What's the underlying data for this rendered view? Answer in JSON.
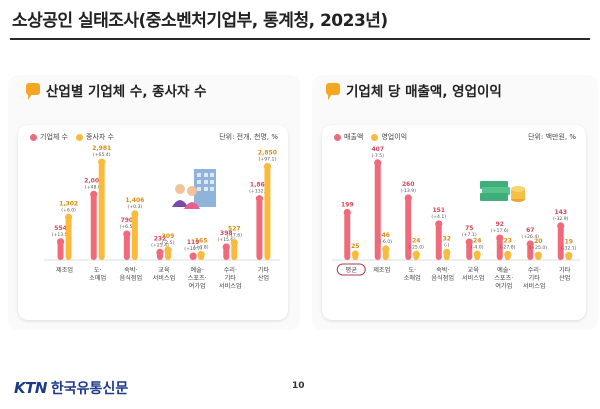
{
  "title": "소상공인 실태조사(중소벤처기업부, 통계청, 2023년)",
  "page_number": "10",
  "footer": {
    "logo": "KTN",
    "name": "한국유통신문"
  },
  "colors": {
    "series1": "#f06a7a",
    "series2": "#f9bb3c",
    "accent": "#f5a623"
  },
  "chart_data": [
    {
      "type": "bar",
      "title": "산업별 기업체 수, 종사자 수",
      "unit": "단위: 전개, 천명, %",
      "series": [
        {
          "name": "기업체 수",
          "values": [
            554,
            2000,
            790,
            232,
            119,
            398,
            1869
          ],
          "value_labels": [
            "554",
            "2,000",
            "790",
            "232",
            "119",
            "398",
            "1,869"
          ],
          "changes": [
            "(+13.5)",
            "(+48.0)",
            "(+6.5)",
            "(+25.4)",
            "(+10.7)",
            "(+15.6)",
            "(+132.2)"
          ]
        },
        {
          "name": "종사자 수",
          "values": [
            1302,
            2981,
            1406,
            309,
            165,
            527,
            2850
          ],
          "value_labels": [
            "1,302",
            "2,981",
            "1,406",
            "309",
            "165",
            "527",
            "2,850"
          ],
          "changes": [
            "(+6.0)",
            "(+65.4)",
            "(+0.3)",
            "(-2.5)",
            "(+3.8)",
            "(-17.6)",
            "(+97.1)"
          ]
        }
      ],
      "categories": [
        [
          "제조업"
        ],
        [
          "도·",
          "소매업"
        ],
        [
          "숙박·",
          "음식점업"
        ],
        [
          "교육",
          "서비스업"
        ],
        [
          "예술·",
          "스포츠·",
          "여가업"
        ],
        [
          "수리·",
          "기타",
          "서비스업"
        ],
        [
          "기타",
          "산업"
        ]
      ],
      "ylim": [
        0,
        3200
      ]
    },
    {
      "type": "bar",
      "title": "기업체 당 매출액, 영업이익",
      "unit": "단위: 백만원, %",
      "highlight_label": "평균",
      "series": [
        {
          "name": "매출액",
          "values": [
            199,
            407,
            260,
            151,
            75,
            92,
            67,
            143
          ],
          "value_labels": [
            "199",
            "407",
            "260",
            "151",
            "75",
            "92",
            "67",
            "143"
          ],
          "changes": [
            "",
            "(-7.5)",
            "(-13.9)",
            "(+4.1)",
            "(+7.1)",
            "(+17.6)",
            "(+26.4)",
            "(-32.9)"
          ]
        },
        {
          "name": "영업이익",
          "values": [
            25,
            46,
            24,
            32,
            24,
            23,
            20,
            19
          ],
          "value_labels": [
            "25",
            "46",
            "24",
            "32",
            "24",
            "23",
            "20",
            "19"
          ],
          "changes": [
            "",
            "(-6.0)",
            "(-25.0)",
            "(-)",
            "(-4.0)",
            "(-27.8)",
            "(+25.0)",
            "(-32.1)"
          ]
        }
      ],
      "categories": [
        [
          "평균"
        ],
        [
          "제조업"
        ],
        [
          "도·",
          "소매업"
        ],
        [
          "숙박·",
          "음식점업"
        ],
        [
          "교육",
          "서비스업"
        ],
        [
          "예술·",
          "스포츠·",
          "여가업"
        ],
        [
          "수리·",
          "기타",
          "서비스업"
        ],
        [
          "기타",
          "산업"
        ]
      ],
      "ylim": [
        0,
        440
      ]
    }
  ]
}
